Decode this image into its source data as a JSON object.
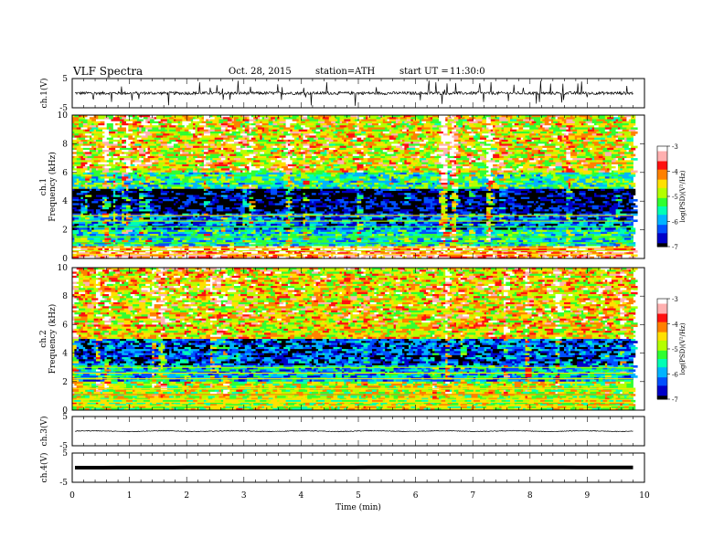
{
  "header": {
    "title": "VLF Spectra",
    "date": "Oct. 28, 2015",
    "station": "station=ATH",
    "start_label": "start  UT =",
    "start_time": "11:30:0"
  },
  "chart_data": [
    {
      "type": "line",
      "panel": "ch1-waveform",
      "ylabel": "ch.1(V)",
      "ylim": [
        -5,
        5
      ],
      "yticks": [
        "5",
        "-5"
      ],
      "x_range": [
        0,
        9.8
      ],
      "baseline_value": 0,
      "description_values": "noisy waveform centered near 0 V with spikes to about +2 and -2"
    },
    {
      "type": "heatmap",
      "panel": "ch1-spectrogram",
      "ylabel_lines": [
        "ch.1",
        "Frequency (kHz)"
      ],
      "ylim": [
        0,
        10
      ],
      "yticks": [
        "0",
        "2",
        "4",
        "6",
        "8",
        "10"
      ],
      "x_range": [
        0,
        9.8
      ],
      "colorbar": {
        "label": "log(PSD)(V²/Hz)",
        "range": [
          -7,
          -3
        ],
        "ticks": [
          "-3",
          "-4",
          "-5",
          "-6",
          "-7"
        ],
        "colors": [
          "#000000",
          "#0000c8",
          "#0050ff",
          "#00b4ff",
          "#00ffb4",
          "#30ff30",
          "#b4ff00",
          "#ffe000",
          "#ff8000",
          "#ff1010",
          "#ffb0b0",
          "#ffffff"
        ]
      },
      "bands_khz": [
        {
          "from": 0,
          "to": 0.8,
          "level": -3.6
        },
        {
          "from": 0.8,
          "to": 2,
          "level": -5.6
        },
        {
          "from": 2,
          "to": 3.2,
          "level": -6.2
        },
        {
          "from": 3.2,
          "to": 4.8,
          "level": -6.9
        },
        {
          "from": 4.8,
          "to": 6,
          "level": -5.4
        },
        {
          "from": 6,
          "to": 10,
          "level": -4.6
        }
      ]
    },
    {
      "type": "heatmap",
      "panel": "ch2-spectrogram",
      "ylabel_lines": [
        "ch.2",
        "Frequency (kHz)"
      ],
      "ylim": [
        0,
        10
      ],
      "yticks": [
        "0",
        "2",
        "4",
        "6",
        "8",
        "10"
      ],
      "x_range": [
        0,
        9.8
      ],
      "colorbar": {
        "label": "log(PSD)(V²/Hz)",
        "range": [
          -7,
          -3
        ],
        "ticks": [
          "-3",
          "-4",
          "-5",
          "-6",
          "-7"
        ]
      },
      "bands_khz": [
        {
          "from": 0,
          "to": 2,
          "level": -4.8
        },
        {
          "from": 2,
          "to": 3.2,
          "level": -5.8
        },
        {
          "from": 3.2,
          "to": 5,
          "level": -6.4
        },
        {
          "from": 5,
          "to": 10,
          "level": -4.5
        }
      ]
    },
    {
      "type": "line",
      "panel": "ch3-waveform",
      "ylabel": "ch.3(V)",
      "ylim": [
        -5,
        5
      ],
      "yticks": [
        "5",
        "-5"
      ],
      "x_range": [
        0,
        9.8
      ],
      "baseline_value": 0
    },
    {
      "type": "line",
      "panel": "ch4-waveform",
      "ylabel": "ch.4(V)",
      "ylim": [
        -5,
        5
      ],
      "yticks": [
        "5",
        "-5"
      ],
      "x_range": [
        0,
        9.8
      ],
      "baseline_value": 0
    }
  ],
  "x_axis": {
    "label": "Time  (min)",
    "ticks": [
      "0",
      "1",
      "2",
      "3",
      "4",
      "5",
      "6",
      "7",
      "8",
      "9",
      "10"
    ],
    "range": [
      0,
      10
    ]
  }
}
